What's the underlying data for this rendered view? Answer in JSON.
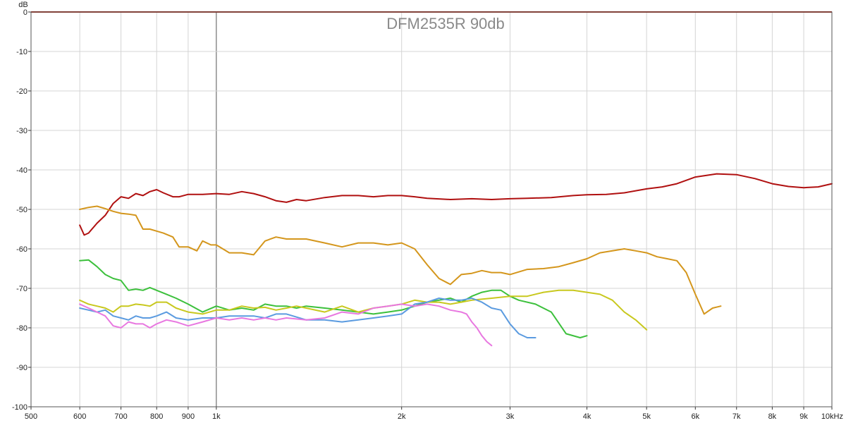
{
  "chart_data": {
    "type": "line",
    "title": "DFM2535R 90db",
    "ylabel": "dB",
    "xlabel": "",
    "x_scale": "log",
    "xlim": [
      500,
      10000
    ],
    "ylim": [
      -100,
      0
    ],
    "grid": true,
    "colors": {
      "background": "#ffffff",
      "grid": "#d4d4d4",
      "major_grid": "#555555",
      "top_line": "#b0301e",
      "axis": "#333333"
    },
    "x_ticks": [
      {
        "v": 500,
        "label": "500"
      },
      {
        "v": 600,
        "label": "600"
      },
      {
        "v": 700,
        "label": "700"
      },
      {
        "v": 800,
        "label": "800"
      },
      {
        "v": 900,
        "label": "900"
      },
      {
        "v": 1000,
        "label": "1k"
      },
      {
        "v": 2000,
        "label": "2k"
      },
      {
        "v": 3000,
        "label": "3k"
      },
      {
        "v": 4000,
        "label": "4k"
      },
      {
        "v": 5000,
        "label": "5k"
      },
      {
        "v": 6000,
        "label": "6k"
      },
      {
        "v": 7000,
        "label": "7k"
      },
      {
        "v": 8000,
        "label": "8k"
      },
      {
        "v": 9000,
        "label": "9k"
      },
      {
        "v": 10000,
        "label": "10kHz"
      }
    ],
    "y_ticks": [
      {
        "v": 0,
        "label": "0"
      },
      {
        "v": -10,
        "label": "-10"
      },
      {
        "v": -20,
        "label": "-20"
      },
      {
        "v": -30,
        "label": "-30"
      },
      {
        "v": -40,
        "label": "-40"
      },
      {
        "v": -50,
        "label": "-50"
      },
      {
        "v": -60,
        "label": "-60"
      },
      {
        "v": -70,
        "label": "-70"
      },
      {
        "v": -80,
        "label": "-80"
      },
      {
        "v": -90,
        "label": "-90"
      },
      {
        "v": -100,
        "label": "-100"
      }
    ],
    "series": [
      {
        "color": "#b01010",
        "x": [
          600,
          610,
          620,
          640,
          660,
          680,
          700,
          720,
          740,
          760,
          780,
          800,
          820,
          850,
          870,
          900,
          950,
          1000,
          1050,
          1100,
          1150,
          1200,
          1250,
          1300,
          1350,
          1400,
          1500,
          1600,
          1700,
          1800,
          1900,
          2000,
          2100,
          2200,
          2400,
          2600,
          2800,
          3000,
          3200,
          3500,
          3800,
          4000,
          4300,
          4600,
          5000,
          5300,
          5600,
          6000,
          6500,
          7000,
          7500,
          8000,
          8500,
          9000,
          9500,
          10000
        ],
        "y": [
          -54,
          -56.5,
          -56,
          -53.5,
          -51.5,
          -48.5,
          -46.8,
          -47.2,
          -46,
          -46.5,
          -45.5,
          -45,
          -45.8,
          -46.8,
          -46.8,
          -46.2,
          -46.2,
          -46,
          -46.2,
          -45.5,
          -46,
          -46.8,
          -47.8,
          -48.2,
          -47.5,
          -47.8,
          -47,
          -46.5,
          -46.5,
          -46.8,
          -46.5,
          -46.5,
          -46.8,
          -47.2,
          -47.5,
          -47.3,
          -47.5,
          -47.3,
          -47.2,
          -47,
          -46.5,
          -46.3,
          -46.2,
          -45.8,
          -44.8,
          -44.3,
          -43.5,
          -41.8,
          -41,
          -41.2,
          -42.2,
          -43.5,
          -44.2,
          -44.5,
          -44.3,
          -43.5
        ]
      },
      {
        "color": "#d4961c",
        "x": [
          600,
          620,
          640,
          660,
          680,
          700,
          720,
          740,
          760,
          780,
          800,
          820,
          850,
          870,
          900,
          930,
          950,
          980,
          1000,
          1050,
          1100,
          1150,
          1200,
          1250,
          1300,
          1400,
          1500,
          1600,
          1700,
          1800,
          1900,
          2000,
          2100,
          2200,
          2300,
          2400,
          2500,
          2600,
          2700,
          2800,
          2900,
          3000,
          3200,
          3400,
          3600,
          3800,
          4000,
          4200,
          4400,
          4600,
          4800,
          5000,
          5200,
          5400,
          5600,
          5800,
          6000,
          6200,
          6400,
          6600
        ],
        "y": [
          -50,
          -49.5,
          -49.2,
          -49.8,
          -50.5,
          -51,
          -51.2,
          -51.5,
          -55,
          -55,
          -55.5,
          -56,
          -57,
          -59.5,
          -59.5,
          -60.5,
          -58,
          -59,
          -59,
          -61,
          -61,
          -61.5,
          -58,
          -57,
          -57.5,
          -57.5,
          -58.5,
          -59.5,
          -58.5,
          -58.5,
          -59,
          -58.5,
          -60,
          -64,
          -67.5,
          -69,
          -66.5,
          -66.2,
          -65.5,
          -66,
          -66,
          -66.5,
          -65.2,
          -65,
          -64.5,
          -63.5,
          -62.5,
          -61,
          -60.5,
          -60,
          -60.5,
          -61,
          -62,
          -62.5,
          -63,
          -66,
          -71.5,
          -76.5,
          -75,
          -74.5
        ]
      },
      {
        "color": "#3cc03c",
        "x": [
          600,
          620,
          640,
          660,
          680,
          700,
          720,
          740,
          760,
          780,
          800,
          830,
          860,
          900,
          950,
          1000,
          1050,
          1100,
          1150,
          1200,
          1250,
          1300,
          1350,
          1400,
          1500,
          1600,
          1700,
          1800,
          1900,
          2000,
          2100,
          2200,
          2300,
          2400,
          2500,
          2600,
          2700,
          2800,
          2900,
          3000,
          3100,
          3300,
          3500,
          3700,
          3900,
          4000
        ],
        "y": [
          -63,
          -62.8,
          -64.5,
          -66.5,
          -67.5,
          -68,
          -70.5,
          -70.2,
          -70.5,
          -69.8,
          -70.5,
          -71.5,
          -72.5,
          -74,
          -76,
          -74.5,
          -75.5,
          -75,
          -75.5,
          -74,
          -74.5,
          -74.5,
          -75,
          -74.5,
          -75,
          -75.5,
          -76,
          -76.5,
          -76,
          -75.5,
          -74.5,
          -73.5,
          -73,
          -72.5,
          -73.5,
          -72,
          -71,
          -70.5,
          -70.5,
          -72,
          -73,
          -74,
          -76,
          -81.5,
          -82.5,
          -82
        ]
      },
      {
        "color": "#c8c81e",
        "x": [
          600,
          620,
          640,
          660,
          680,
          700,
          720,
          740,
          760,
          780,
          800,
          830,
          860,
          900,
          950,
          1000,
          1050,
          1100,
          1150,
          1200,
          1250,
          1300,
          1350,
          1400,
          1500,
          1600,
          1700,
          1800,
          1900,
          2000,
          2100,
          2200,
          2300,
          2400,
          2500,
          2600,
          2800,
          3000,
          3200,
          3400,
          3600,
          3800,
          4000,
          4200,
          4400,
          4600,
          4800,
          5000
        ],
        "y": [
          -73,
          -74,
          -74.5,
          -75,
          -76,
          -74.5,
          -74.5,
          -74,
          -74.2,
          -74.5,
          -73.5,
          -73.5,
          -75,
          -76,
          -76.5,
          -75.5,
          -75.5,
          -74.5,
          -75,
          -74.8,
          -75.5,
          -75,
          -74.5,
          -75,
          -76,
          -74.5,
          -76,
          -75,
          -74.5,
          -74,
          -73,
          -73.5,
          -73.5,
          -74,
          -73.5,
          -73,
          -72.5,
          -72,
          -72,
          -71,
          -70.5,
          -70.5,
          -71,
          -71.5,
          -73,
          -76,
          -78,
          -80.5
        ]
      },
      {
        "color": "#5b9be0",
        "x": [
          600,
          620,
          640,
          660,
          680,
          700,
          720,
          740,
          760,
          780,
          800,
          830,
          860,
          900,
          950,
          1000,
          1050,
          1100,
          1150,
          1200,
          1250,
          1300,
          1400,
          1500,
          1600,
          1700,
          1800,
          1900,
          2000,
          2100,
          2200,
          2300,
          2400,
          2500,
          2600,
          2700,
          2800,
          2900,
          3000,
          3100,
          3200,
          3300
        ],
        "y": [
          -75,
          -75.5,
          -76,
          -75.5,
          -77,
          -77.5,
          -78,
          -77,
          -77.5,
          -77.5,
          -77,
          -76,
          -77.5,
          -78,
          -77.5,
          -77.5,
          -77,
          -77,
          -77,
          -77.5,
          -76.5,
          -76.5,
          -78,
          -78,
          -78.5,
          -78,
          -77.5,
          -77,
          -76.5,
          -74,
          -73.5,
          -72.5,
          -73,
          -73,
          -72.5,
          -73.5,
          -75,
          -75.5,
          -79,
          -81.5,
          -82.5,
          -82.5
        ]
      },
      {
        "color": "#e878e0",
        "x": [
          600,
          620,
          640,
          660,
          680,
          700,
          720,
          740,
          760,
          780,
          800,
          830,
          860,
          900,
          950,
          1000,
          1050,
          1100,
          1150,
          1200,
          1250,
          1300,
          1400,
          1500,
          1600,
          1700,
          1800,
          1900,
          2000,
          2100,
          2200,
          2300,
          2400,
          2500,
          2550,
          2600,
          2650,
          2700,
          2750,
          2800
        ],
        "y": [
          -74,
          -75,
          -76,
          -77,
          -79.5,
          -80,
          -78.5,
          -79,
          -79,
          -80,
          -79,
          -78,
          -78.5,
          -79.5,
          -78.5,
          -77.5,
          -78,
          -77.5,
          -78,
          -77.5,
          -78,
          -77.5,
          -78,
          -77.5,
          -76,
          -76.5,
          -75,
          -74.5,
          -74,
          -74.5,
          -74,
          -74.5,
          -75.5,
          -76,
          -76.5,
          -78.5,
          -80,
          -82,
          -83.5,
          -84.5
        ]
      }
    ]
  }
}
